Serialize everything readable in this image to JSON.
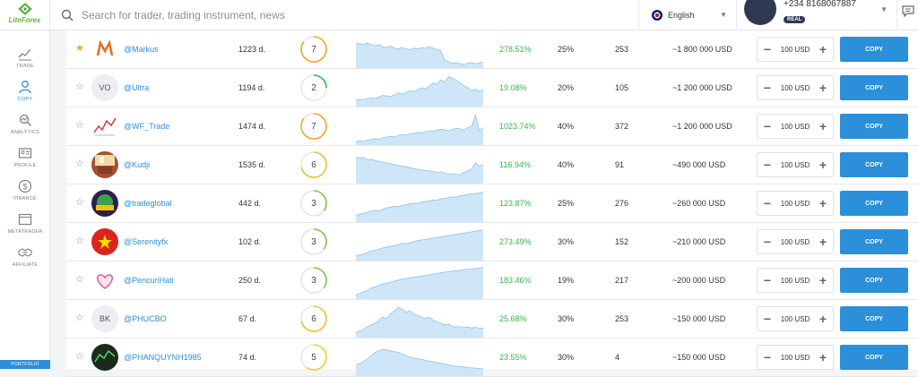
{
  "header": {
    "logo_text": "LiteForex",
    "search_placeholder": "Search for trader, trading instrument, news",
    "language": "English",
    "phone": "+234 8168067887",
    "account_badge": "REAL"
  },
  "sidebar": {
    "items": [
      {
        "label": "TRADE",
        "icon": "trade-chart-icon"
      },
      {
        "label": "COPY",
        "icon": "copy-user-icon",
        "active": true
      },
      {
        "label": "ANALYTICS",
        "icon": "analytics-icon"
      },
      {
        "label": "PROFILE",
        "icon": "profile-card-icon"
      },
      {
        "label": "FINANCE",
        "icon": "finance-dollar-icon"
      },
      {
        "label": "METATRADER",
        "icon": "metatrader-window-icon"
      },
      {
        "label": "AFFILIATE",
        "icon": "affiliate-handshake-icon"
      }
    ],
    "portfolio_label": "PORTFOLIO"
  },
  "traders": [
    {
      "starred": true,
      "avatar": "m-logo",
      "avatar_text": "",
      "name": "@Markus",
      "days": "1223 d.",
      "risk": "7",
      "risk_level": 0.85,
      "risk_color": "#f5a623",
      "profit": "278.51%",
      "drawdown": "25%",
      "copiers": "253",
      "equity": "~1 800 000 USD",
      "amount": "100 USD",
      "copy_label": "COPY"
    },
    {
      "starred": false,
      "avatar": "initials",
      "avatar_text": "VO",
      "name": "@Ultra",
      "days": "1194 d.",
      "risk": "2",
      "risk_level": 0.25,
      "risk_color": "#3cb34a",
      "profit": "19.08%",
      "drawdown": "20%",
      "copiers": "105",
      "equity": "~1 200 000 USD",
      "amount": "100 USD",
      "copy_label": "COPY"
    },
    {
      "starred": false,
      "avatar": "chart-img",
      "avatar_text": "",
      "name": "@WF_Trade",
      "days": "1474 d.",
      "risk": "7",
      "risk_level": 0.85,
      "risk_color": "#f5a623",
      "profit": "1023.74%",
      "drawdown": "40%",
      "copiers": "372",
      "equity": "~1 200 000 USD",
      "amount": "100 USD",
      "copy_label": "COPY"
    },
    {
      "starred": false,
      "avatar": "room-img",
      "avatar_text": "",
      "name": "@Kudji",
      "days": "1535 d.",
      "risk": "6",
      "risk_level": 0.72,
      "risk_color": "#f2c037",
      "profit": "116.94%",
      "drawdown": "40%",
      "copiers": "91",
      "equity": "~490 000 USD",
      "amount": "100 USD",
      "copy_label": "COPY"
    },
    {
      "starred": false,
      "avatar": "globe-img",
      "avatar_text": "",
      "name": "@tradeglobal",
      "days": "442 d.",
      "risk": "3",
      "risk_level": 0.35,
      "risk_color": "#7ec850",
      "profit": "123.87%",
      "drawdown": "25%",
      "copiers": "276",
      "equity": "~260 000 USD",
      "amount": "100 USD",
      "copy_label": "COPY"
    },
    {
      "starred": false,
      "avatar": "vn-flag",
      "avatar_text": "",
      "name": "@Serenityfx",
      "days": "102 d.",
      "risk": "3",
      "risk_level": 0.35,
      "risk_color": "#7ec850",
      "profit": "273.49%",
      "drawdown": "30%",
      "copiers": "152",
      "equity": "~210 000 USD",
      "amount": "100 USD",
      "copy_label": "COPY"
    },
    {
      "starred": false,
      "avatar": "heart-img",
      "avatar_text": "",
      "name": "@PencuriHati",
      "days": "250 d.",
      "risk": "3",
      "risk_level": 0.35,
      "risk_color": "#7ec850",
      "profit": "183.46%",
      "drawdown": "19%",
      "copiers": "217",
      "equity": "~200 000 USD",
      "amount": "100 USD",
      "copy_label": "COPY"
    },
    {
      "starred": false,
      "avatar": "initials",
      "avatar_text": "BK",
      "name": "@PHUCBO",
      "days": "67 d.",
      "risk": "6",
      "risk_level": 0.72,
      "risk_color": "#f2c037",
      "profit": "25.68%",
      "drawdown": "30%",
      "copiers": "253",
      "equity": "~150 000 USD",
      "amount": "100 USD",
      "copy_label": "COPY"
    },
    {
      "starred": false,
      "avatar": "dark-img",
      "avatar_text": "",
      "name": "@PHANQUYNH1985",
      "days": "74 d.",
      "risk": "5",
      "risk_level": 0.6,
      "risk_color": "#f2d02b",
      "profit": "23.55%",
      "drawdown": "30%",
      "copiers": "4",
      "equity": "~150 000 USD",
      "amount": "100 USD",
      "copy_label": "COPY"
    }
  ],
  "sparklines": [
    [
      0.75,
      0.72,
      0.7,
      0.74,
      0.69,
      0.66,
      0.68,
      0.62,
      0.6,
      0.64,
      0.58,
      0.55,
      0.6,
      0.56,
      0.52,
      0.58,
      0.55,
      0.6,
      0.57,
      0.62,
      0.58,
      0.54,
      0.5,
      0.2,
      0.14,
      0.1,
      0.12,
      0.08,
      0.06,
      0.1,
      0.12,
      0.08,
      0.1,
      0.14
    ],
    [
      0.15,
      0.18,
      0.16,
      0.2,
      0.22,
      0.2,
      0.25,
      0.3,
      0.28,
      0.26,
      0.32,
      0.38,
      0.34,
      0.4,
      0.45,
      0.42,
      0.48,
      0.55,
      0.5,
      0.6,
      0.7,
      0.65,
      0.8,
      0.72,
      0.9,
      0.85,
      0.78,
      0.7,
      0.6,
      0.55,
      0.45,
      0.5,
      0.42,
      0.48
    ],
    [
      0.05,
      0.08,
      0.06,
      0.1,
      0.12,
      0.15,
      0.12,
      0.18,
      0.2,
      0.22,
      0.2,
      0.25,
      0.28,
      0.26,
      0.3,
      0.32,
      0.35,
      0.33,
      0.36,
      0.4,
      0.38,
      0.42,
      0.45,
      0.43,
      0.4,
      0.44,
      0.48,
      0.46,
      0.42,
      0.5,
      0.55,
      0.9,
      0.4,
      0.5
    ],
    [
      0.8,
      0.75,
      0.78,
      0.7,
      0.72,
      0.68,
      0.65,
      0.62,
      0.6,
      0.58,
      0.55,
      0.52,
      0.5,
      0.48,
      0.45,
      0.42,
      0.4,
      0.38,
      0.36,
      0.35,
      0.33,
      0.3,
      0.32,
      0.28,
      0.25,
      0.26,
      0.24,
      0.22,
      0.3,
      0.35,
      0.4,
      0.6,
      0.5,
      0.55
    ],
    [
      0.15,
      0.2,
      0.22,
      0.25,
      0.3,
      0.32,
      0.3,
      0.35,
      0.4,
      0.42,
      0.45,
      0.44,
      0.48,
      0.5,
      0.52,
      0.55,
      0.54,
      0.58,
      0.6,
      0.62,
      0.65,
      0.64,
      0.68,
      0.7,
      0.72,
      0.75,
      0.74,
      0.78,
      0.8,
      0.82,
      0.85,
      0.84,
      0.88,
      0.9
    ],
    [
      0.1,
      0.12,
      0.15,
      0.2,
      0.25,
      0.28,
      0.3,
      0.35,
      0.38,
      0.4,
      0.42,
      0.45,
      0.5,
      0.48,
      0.52,
      0.55,
      0.58,
      0.6,
      0.62,
      0.64,
      0.66,
      0.68,
      0.7,
      0.72,
      0.74,
      0.76,
      0.78,
      0.8,
      0.82,
      0.84,
      0.86,
      0.88,
      0.9,
      0.92
    ],
    [
      0.08,
      0.12,
      0.18,
      0.22,
      0.3,
      0.34,
      0.38,
      0.42,
      0.45,
      0.48,
      0.52,
      0.55,
      0.58,
      0.6,
      0.62,
      0.64,
      0.66,
      0.68,
      0.7,
      0.72,
      0.74,
      0.76,
      0.78,
      0.8,
      0.82,
      0.84,
      0.85,
      0.86,
      0.88,
      0.9,
      0.9,
      0.92,
      0.94,
      0.95
    ],
    [
      0.1,
      0.15,
      0.2,
      0.3,
      0.35,
      0.4,
      0.5,
      0.6,
      0.55,
      0.7,
      0.8,
      0.9,
      0.85,
      0.75,
      0.8,
      0.7,
      0.65,
      0.6,
      0.55,
      0.6,
      0.5,
      0.45,
      0.4,
      0.35,
      0.38,
      0.3,
      0.28,
      0.3,
      0.26,
      0.28,
      0.25,
      0.27,
      0.24,
      0.25
    ],
    [
      0.3,
      0.35,
      0.4,
      0.5,
      0.6,
      0.7,
      0.75,
      0.8,
      0.78,
      0.75,
      0.72,
      0.7,
      0.65,
      0.6,
      0.55,
      0.52,
      0.5,
      0.48,
      0.45,
      0.42,
      0.4,
      0.38,
      0.35,
      0.33,
      0.3,
      0.28,
      0.26,
      0.25,
      0.24,
      0.22,
      0.2,
      0.2,
      0.18,
      0.18
    ]
  ]
}
